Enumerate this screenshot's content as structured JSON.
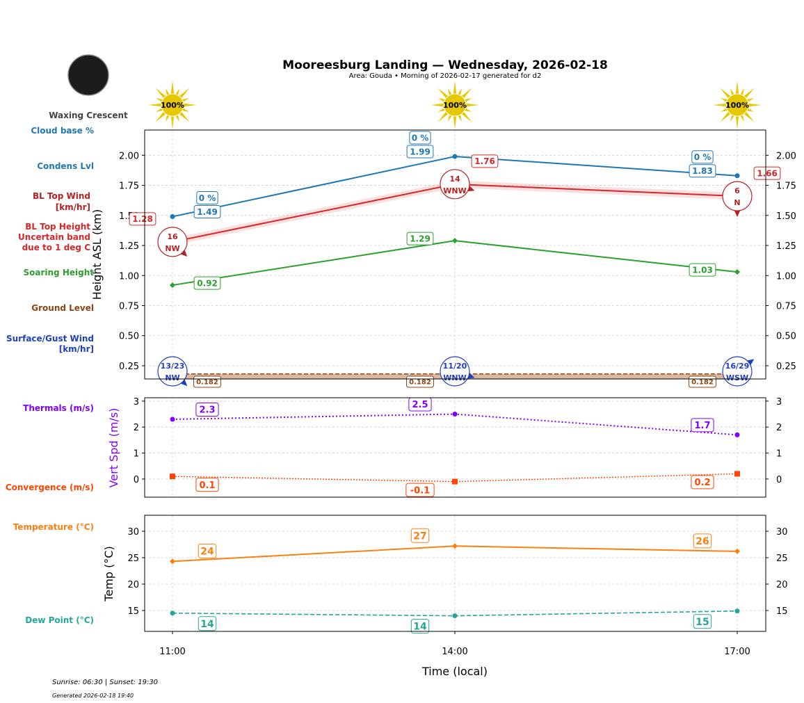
{
  "header": {
    "title": "Mooreesburg Landing — Wednesday, 2026-02-18",
    "subtitle": "Area: Gouda • Morning of 2026-02-17 generated for d2",
    "moon_phase": "Waxing Crescent",
    "sunrise_sunset": "Sunrise: 06:30 | Sunset: 19:30",
    "generated": "Generated 2026-02-18 19:40"
  },
  "side_labels": {
    "cloud_base": "Cloud base %",
    "condens": "Condens Lvl",
    "bl_wind": [
      "BL Top Wind",
      "[km/hr]"
    ],
    "bl_height": [
      "BL Top Height",
      "Uncertain band",
      "due to 1 deg C"
    ],
    "soaring": "Soaring Height",
    "ground": "Ground Level",
    "surface_wind": [
      "Surface/Gust Wind",
      "[km/hr]"
    ],
    "thermals": "Thermals (m/s)",
    "convergence": "Convergence (m/s)",
    "temperature": "Temperature (°C)",
    "dew_point": "Dew Point (°C)"
  },
  "colors": {
    "condens": "#1f77b4",
    "bl_top": "#d62728",
    "bl_wind": "#b22222",
    "soaring": "#2ca02c",
    "ground": "#8b4513",
    "surface_wind": "#1f3fbf",
    "thermals": "#8000ff",
    "convergence": "#ff4500",
    "temperature": "#ff7f0e",
    "dew_point": "#26a69a",
    "sun": "#e6c800"
  },
  "chart_data": [
    {
      "type": "line",
      "categories": [
        "11:00",
        "14:00",
        "17:00"
      ],
      "xlabel": "Time (local)",
      "ylabel": "Height ASL (km)",
      "ylim": [
        0.14,
        2.21
      ],
      "yticks": [
        "0.25",
        "0.50",
        "0.75",
        "1.00",
        "1.25",
        "1.50",
        "1.75",
        "2.00"
      ],
      "grid": true,
      "sun_percent": [
        "100%",
        "100%",
        "100%"
      ],
      "series": [
        {
          "name": "Condens Lvl",
          "values": [
            1.49,
            1.99,
            1.83
          ],
          "labels": [
            "1.49",
            "1.99",
            "1.83"
          ],
          "cloud_base": [
            "0 %",
            "0 %",
            "0 %"
          ]
        },
        {
          "name": "BL Top Height",
          "values": [
            1.28,
            1.76,
            1.66
          ],
          "labels": [
            "1.28",
            "1.76",
            "1.66"
          ],
          "uncertainty": 0.03
        },
        {
          "name": "Soaring Height",
          "values": [
            0.92,
            1.29,
            1.03
          ],
          "labels": [
            "0.92",
            "1.29",
            "1.03"
          ]
        },
        {
          "name": "Ground Level",
          "values": [
            0.182,
            0.182,
            0.182
          ],
          "labels": [
            "0.182",
            "0.182",
            "0.182"
          ]
        }
      ],
      "bl_wind": [
        {
          "speed": "16",
          "dir": "NW"
        },
        {
          "speed": "14",
          "dir": "WNW"
        },
        {
          "speed": "6",
          "dir": "N"
        }
      ],
      "surface_wind": [
        {
          "speed": "13/23",
          "dir": "NW"
        },
        {
          "speed": "11/20",
          "dir": "WNW"
        },
        {
          "speed": "16/29",
          "dir": "WSW"
        }
      ]
    },
    {
      "type": "line",
      "categories": [
        "11:00",
        "14:00",
        "17:00"
      ],
      "ylabel": "Vert Spd (m/s)",
      "ylim": [
        -0.7,
        3.13
      ],
      "yticks": [
        "0",
        "1",
        "2",
        "3"
      ],
      "grid": true,
      "series": [
        {
          "name": "Thermals (m/s)",
          "values": [
            2.3,
            2.5,
            1.7
          ],
          "labels": [
            "2.3",
            "2.5",
            "1.7"
          ]
        },
        {
          "name": "Convergence (m/s)",
          "values": [
            0.1,
            -0.1,
            0.2
          ],
          "labels": [
            "0.1",
            "-0.1",
            "0.2"
          ]
        }
      ]
    },
    {
      "type": "line",
      "categories": [
        "11:00",
        "14:00",
        "17:00"
      ],
      "xlabel": "Time (local)",
      "ylabel": "Temp (°C)",
      "ylim": [
        11.05,
        33.03
      ],
      "yticks": [
        "15",
        "20",
        "25",
        "30"
      ],
      "grid": true,
      "series": [
        {
          "name": "Temperature (°C)",
          "values": [
            24.3,
            27.2,
            26.2
          ],
          "labels": [
            "24",
            "27",
            "26"
          ]
        },
        {
          "name": "Dew Point (°C)",
          "values": [
            14.5,
            14.0,
            14.9
          ],
          "labels": [
            "14",
            "14",
            "15"
          ]
        }
      ]
    }
  ]
}
